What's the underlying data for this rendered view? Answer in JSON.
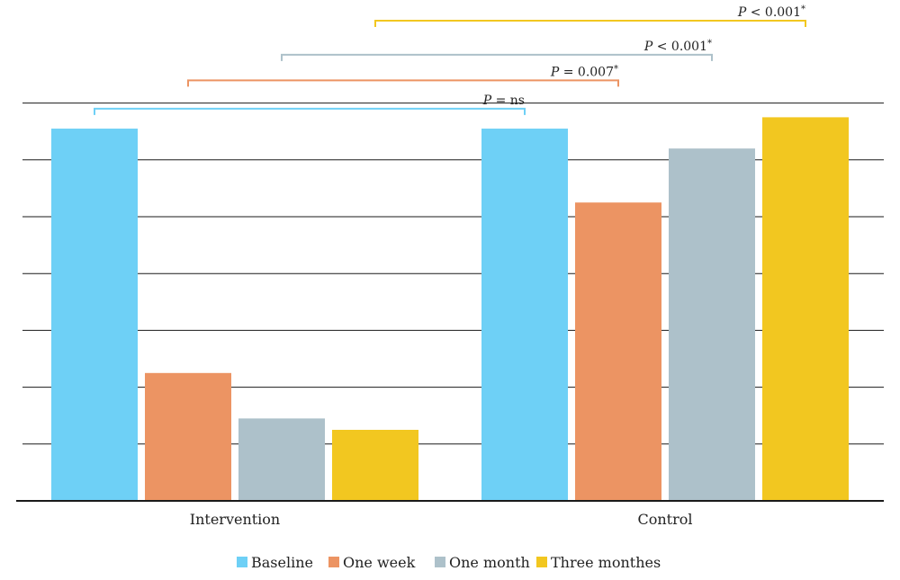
{
  "chart_data": {
    "type": "bar",
    "title": "",
    "xlabel": "",
    "ylabel": "",
    "ylim": [
      0,
      14
    ],
    "grid": true,
    "gridlines": [
      2,
      4,
      6,
      8,
      10,
      12,
      14
    ],
    "legend_position": "bottom",
    "categories": [
      "Intervention",
      "Control"
    ],
    "series": [
      {
        "name": "Baseline",
        "color": "#6ed0f6",
        "values": [
          13.1,
          13.1
        ]
      },
      {
        "name": "One week",
        "color": "#ec9463",
        "values": [
          4.5,
          10.5
        ]
      },
      {
        "name": "One month",
        "color": "#adc1ca",
        "values": [
          2.9,
          12.4
        ]
      },
      {
        "name": "Three monthes",
        "color": "#f2c720",
        "values": [
          2.5,
          13.5
        ]
      }
    ],
    "annotations": [
      {
        "prefix": "P",
        "text": " = ns",
        "star": "",
        "color": "#6ed0f6",
        "series_index": 0,
        "level": 13.8
      },
      {
        "prefix": "P",
        "text": " = 0.007",
        "star": "*",
        "color": "#ec9463",
        "series_index": 1,
        "level": 14.8
      },
      {
        "prefix": "P",
        "text": " < 0.001",
        "star": "*",
        "color": "#adc1ca",
        "series_index": 2,
        "level": 15.7
      },
      {
        "prefix": "P",
        "text": " < 0.001",
        "star": "*",
        "color": "#f2c720",
        "series_index": 3,
        "level": 16.9
      }
    ]
  }
}
